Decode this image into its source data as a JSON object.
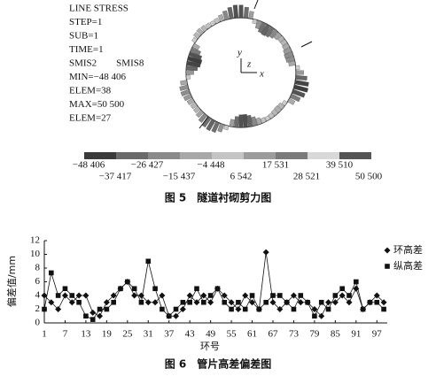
{
  "figure5": {
    "info": [
      "LINE STRESS",
      "STEP=1",
      "SUB=1",
      "TIME=1",
      "SMIS2　　SMIS8",
      "MIN=−48 406",
      "ELEM=38",
      "MAX=50 500",
      "ELEM=27"
    ],
    "axes": [
      "y",
      "z",
      "x"
    ],
    "colorbar_top": [
      "−48 406",
      "−26 427",
      "−4 448",
      "17 531",
      "39 510"
    ],
    "colorbar_bottom": [
      "−37 417",
      "−15 437",
      "6 542",
      "28 521",
      "50 500"
    ],
    "caption": "图 5　隧道衬砌剪力图"
  },
  "chart_data": {
    "type": "line",
    "caption": "图 6　管片高差偏差图",
    "ylabel": "偏差值/mm",
    "xlabel": "环号",
    "x": [
      1,
      3,
      5,
      7,
      9,
      11,
      13,
      15,
      17,
      19,
      21,
      23,
      25,
      27,
      29,
      31,
      33,
      35,
      37,
      39,
      41,
      43,
      45,
      47,
      49,
      51,
      53,
      55,
      57,
      59,
      61,
      63,
      65,
      67,
      69,
      71,
      73,
      75,
      77,
      79,
      81,
      83,
      85,
      87,
      89,
      91,
      93,
      95,
      97,
      99
    ],
    "series": [
      {
        "name": "环高差",
        "color": "#111111",
        "marker": "diamond",
        "values": [
          4,
          3,
          2,
          4,
          3,
          4,
          4,
          1.5,
          1,
          3,
          4,
          5,
          6,
          4,
          4,
          3,
          3,
          4,
          1,
          1,
          2,
          4,
          3,
          4,
          3,
          5,
          4,
          3,
          2,
          4,
          3,
          2,
          10.3,
          3,
          2,
          3,
          4,
          3,
          3,
          2,
          1,
          3,
          3,
          4,
          3,
          5,
          2,
          3,
          4,
          3
        ]
      },
      {
        "name": "纵高差",
        "color": "#111111",
        "marker": "square",
        "values": [
          2,
          7.3,
          4,
          5,
          4,
          3,
          1,
          0.5,
          2,
          2,
          3,
          5,
          6,
          5,
          3,
          9,
          5,
          2,
          1,
          2,
          3,
          3,
          5,
          3,
          4,
          5,
          3,
          2,
          3,
          2,
          4,
          2,
          3,
          4,
          4,
          3,
          2,
          4,
          3,
          1,
          3,
          2,
          4,
          5,
          4,
          6,
          2,
          3,
          3,
          2
        ]
      }
    ],
    "xlim": [
      1,
      100
    ],
    "xticks": [
      1,
      7,
      13,
      19,
      25,
      31,
      37,
      43,
      49,
      55,
      61,
      67,
      73,
      79,
      85,
      91,
      97
    ],
    "ylim": [
      0,
      12
    ],
    "yticks": [
      0,
      2,
      4,
      6,
      8,
      10,
      12
    ]
  }
}
